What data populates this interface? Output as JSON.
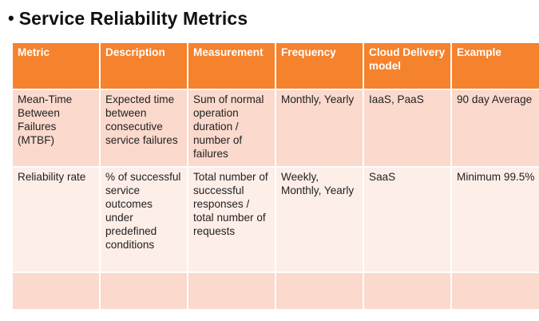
{
  "slide": {
    "bullet": "•",
    "title": "Service Reliability Metrics"
  },
  "table": {
    "headers": [
      "Metric",
      "Description",
      "Measurement",
      "Frequency",
      "Cloud Delivery model",
      "Example"
    ],
    "rows": [
      {
        "metric": "Mean-Time Between Failures (MTBF)",
        "description": "Expected time between consecutive service failures",
        "measurement": "Sum of normal operation duration / number of failures",
        "frequency": "Monthly, Yearly",
        "cloud_delivery_model": "IaaS, PaaS",
        "example": "90 day Average"
      },
      {
        "metric": "Reliability rate",
        "description": "% of successful service outcomes under predefined conditions",
        "measurement": "Total number of successful responses / total number of requests",
        "frequency": "Weekly, Monthly, Yearly",
        "cloud_delivery_model": "SaaS",
        "example": "Minimum 99.5%"
      },
      {
        "metric": "",
        "description": "",
        "measurement": "",
        "frequency": "",
        "cloud_delivery_model": "",
        "example": ""
      }
    ]
  },
  "colors": {
    "header_bg": "#f5822d",
    "row_dark": "#fbd9cd",
    "row_light": "#fdeee8"
  }
}
